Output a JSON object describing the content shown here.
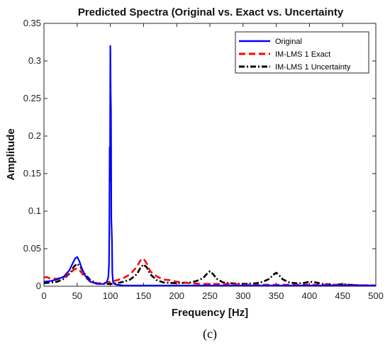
{
  "chart_data": {
    "type": "line",
    "title": "Predicted Spectra (Original vs. Exact vs. Uncertainty",
    "xlabel": "Frequency [Hz]",
    "ylabel": "Amplitude",
    "xlim": [
      0,
      500
    ],
    "ylim": [
      0,
      0.35
    ],
    "xticks": [
      "0",
      "50",
      "100",
      "150",
      "200",
      "250",
      "300",
      "350",
      "400",
      "450",
      "500"
    ],
    "yticks": [
      "0",
      "0.05",
      "0.1",
      "0.15",
      "0.2",
      "0.25",
      "0.3",
      "0.35"
    ],
    "grid": false,
    "legend_position": "top-right",
    "series": [
      {
        "name": "Original",
        "color": "#0000ff",
        "style": "solid",
        "x": [
          0,
          10,
          20,
          30,
          38,
          43,
          47,
          50,
          53,
          57,
          62,
          70,
          80,
          90,
          95,
          97,
          98,
          98.5,
          99,
          99.5,
          100,
          100.5,
          101,
          101.5,
          102,
          102.5,
          103,
          104,
          106,
          110,
          120,
          150,
          200,
          250,
          300,
          350,
          400,
          450,
          500
        ],
        "y": [
          0.006,
          0.007,
          0.009,
          0.013,
          0.021,
          0.03,
          0.037,
          0.039,
          0.034,
          0.024,
          0.014,
          0.006,
          0.003,
          0.003,
          0.006,
          0.012,
          0.03,
          0.08,
          0.185,
          0.14,
          0.32,
          0.26,
          0.233,
          0.09,
          0.076,
          0.06,
          0.018,
          0.006,
          0.003,
          0.002,
          0.001,
          0.001,
          0.001,
          0.001,
          0.001,
          0.001,
          0.001,
          0.001,
          0.001
        ]
      },
      {
        "name": "IM-LMS 1 Exact",
        "color": "#ff0000",
        "style": "dashed",
        "x": [
          0,
          5,
          10,
          20,
          30,
          40,
          45,
          50,
          55,
          60,
          70,
          80,
          90,
          100,
          110,
          120,
          130,
          140,
          145,
          150,
          155,
          160,
          170,
          180,
          190,
          200,
          220,
          240,
          260,
          280,
          300,
          350,
          400,
          450,
          500
        ],
        "y": [
          0.012,
          0.012,
          0.01,
          0.01,
          0.012,
          0.018,
          0.022,
          0.024,
          0.02,
          0.014,
          0.006,
          0.004,
          0.004,
          0.006,
          0.008,
          0.011,
          0.016,
          0.026,
          0.034,
          0.037,
          0.03,
          0.02,
          0.013,
          0.009,
          0.008,
          0.006,
          0.004,
          0.003,
          0.003,
          0.003,
          0.002,
          0.002,
          0.002,
          0.002,
          0.001
        ]
      },
      {
        "name": "IM-LMS 1 Uncertainty",
        "color": "#000000",
        "style": "dashdot",
        "x": [
          0,
          20,
          30,
          40,
          45,
          50,
          55,
          60,
          70,
          80,
          90,
          100,
          110,
          120,
          130,
          140,
          145,
          150,
          155,
          160,
          170,
          180,
          200,
          220,
          230,
          240,
          245,
          250,
          255,
          260,
          270,
          280,
          300,
          320,
          330,
          340,
          345,
          350,
          355,
          360,
          370,
          380,
          390,
          400,
          410,
          420,
          440,
          450,
          460,
          480,
          500
        ],
        "y": [
          0.004,
          0.006,
          0.01,
          0.018,
          0.026,
          0.03,
          0.026,
          0.018,
          0.008,
          0.004,
          0.003,
          0.003,
          0.004,
          0.006,
          0.009,
          0.016,
          0.024,
          0.029,
          0.025,
          0.016,
          0.008,
          0.005,
          0.004,
          0.005,
          0.007,
          0.011,
          0.016,
          0.02,
          0.016,
          0.01,
          0.005,
          0.004,
          0.003,
          0.004,
          0.006,
          0.01,
          0.015,
          0.018,
          0.014,
          0.009,
          0.005,
          0.004,
          0.004,
          0.006,
          0.005,
          0.003,
          0.002,
          0.003,
          0.002,
          0.001,
          0.001
        ]
      }
    ]
  },
  "caption": "(c)"
}
